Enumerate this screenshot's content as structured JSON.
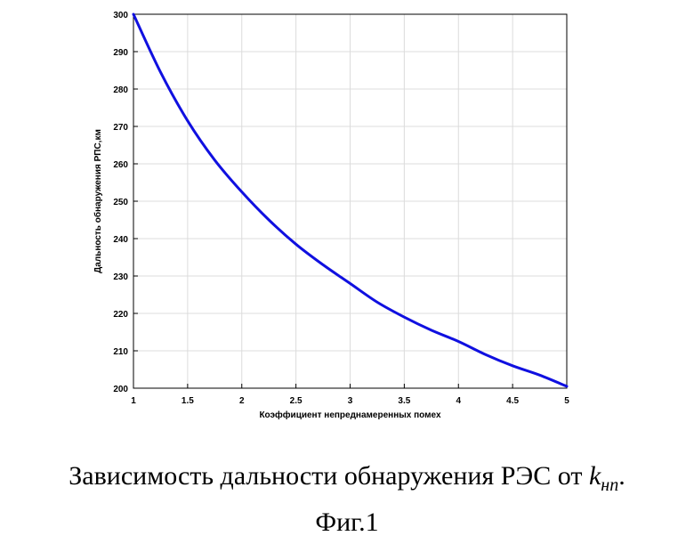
{
  "chart_data": {
    "type": "line",
    "xlabel": "Коэффициент непреднамеренных помех",
    "ylabel": "Дальность обнаружения РПС,км",
    "xlim": [
      1,
      5
    ],
    "ylim": [
      200,
      300
    ],
    "x_ticks": [
      "1",
      "1.5",
      "2",
      "2.5",
      "3",
      "3.5",
      "4",
      "4.5",
      "5"
    ],
    "y_ticks": [
      "200",
      "210",
      "220",
      "230",
      "240",
      "250",
      "260",
      "270",
      "280",
      "290",
      "300"
    ],
    "grid": true,
    "series": [
      {
        "color": "#1010e0",
        "x": [
          1,
          1.25,
          1.5,
          1.75,
          2,
          2.25,
          2.5,
          2.75,
          3,
          3.25,
          3.5,
          3.75,
          4,
          4.25,
          4.5,
          4.75,
          5
        ],
        "y": [
          300,
          284.5,
          271.5,
          261,
          252.5,
          245,
          238.5,
          233,
          228,
          223,
          219,
          215.5,
          212.5,
          209,
          206,
          203.5,
          200.5
        ]
      }
    ]
  },
  "caption": {
    "main": "Зависимость дальности обнаружения РЭС от ",
    "var": "k",
    "sub": "нп",
    "end": ".",
    "figure": "Фиг.1"
  }
}
